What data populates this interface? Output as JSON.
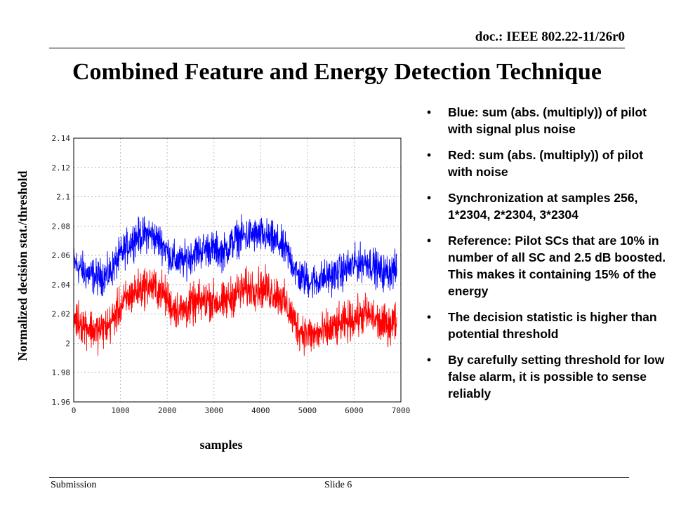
{
  "header": {
    "doc_id": "doc.: IEEE 802.22-11/26r0"
  },
  "slide": {
    "title": "Combined Feature and Energy Detection Technique"
  },
  "bullets": [
    "Blue: sum (abs. (multiply)) of pilot with signal plus noise",
    "Red: sum (abs. (multiply)) of pilot with noise",
    "Synchronization at samples 256, 1*2304, 2*2304, 3*2304",
    "Reference: Pilot SCs that are 10% in number of all SC and 2.5 dB boosted. This makes it containing 15% of the energy",
    "The decision statistic is higher than potential threshold",
    "By carefully setting threshold for low false alarm, it is possible to sense reliably"
  ],
  "footer": {
    "left": "Submission",
    "center": "Slide 6"
  },
  "chart_data": {
    "type": "line",
    "xlabel": "samples",
    "ylabel": "Normalized decision stat./threshold",
    "xlim": [
      0,
      7000
    ],
    "ylim": [
      1.96,
      2.14
    ],
    "x_ticks": [
      "0",
      "1000",
      "2000",
      "3000",
      "4000",
      "5000",
      "6000",
      "7000"
    ],
    "y_ticks": [
      "1.96",
      "1.98",
      "2",
      "2.02",
      "2.04",
      "2.06",
      "2.08",
      "2.1",
      "2.12",
      "2.14"
    ],
    "grid": true,
    "series": [
      {
        "color": "#0000ff",
        "x": [
          0,
          256,
          500,
          750,
          1000,
          1300,
          1600,
          1900,
          2100,
          2304,
          2600,
          2900,
          3200,
          3500,
          3800,
          4100,
          4400,
          4608,
          4800,
          5100,
          5400,
          5700,
          6000,
          6300,
          6600,
          6912
        ],
        "y": [
          2.055,
          2.048,
          2.045,
          2.047,
          2.06,
          2.072,
          2.075,
          2.068,
          2.058,
          2.055,
          2.062,
          2.065,
          2.062,
          2.072,
          2.074,
          2.073,
          2.068,
          2.06,
          2.046,
          2.042,
          2.045,
          2.048,
          2.054,
          2.056,
          2.048,
          2.05
        ],
        "noise_amplitude": 0.018
      },
      {
        "color": "#ff0000",
        "x": [
          0,
          256,
          500,
          750,
          1000,
          1300,
          1600,
          1900,
          2100,
          2304,
          2600,
          2900,
          3200,
          3500,
          3800,
          4100,
          4400,
          4608,
          4800,
          5100,
          5400,
          5700,
          6000,
          6300,
          6600,
          6912
        ],
        "y": [
          2.018,
          2.012,
          2.008,
          2.012,
          2.025,
          2.035,
          2.04,
          2.035,
          2.025,
          2.022,
          2.027,
          2.03,
          2.027,
          2.035,
          2.038,
          2.037,
          2.033,
          2.022,
          2.01,
          2.005,
          2.008,
          2.012,
          2.017,
          2.02,
          2.012,
          2.015
        ],
        "noise_amplitude": 0.02
      }
    ]
  }
}
